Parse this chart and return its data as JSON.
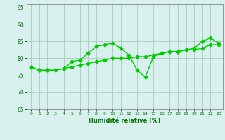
{
  "line1_x": [
    0,
    1,
    2,
    3,
    4,
    5,
    6,
    7,
    8,
    9,
    10,
    11,
    12,
    13,
    14,
    15,
    16,
    17,
    18,
    19,
    20,
    21,
    22,
    23
  ],
  "line1_y": [
    77.5,
    76.5,
    76.5,
    76.5,
    77,
    79,
    79.5,
    81.5,
    83.5,
    84,
    84.5,
    83,
    81,
    76.5,
    74.5,
    80.5,
    81.5,
    82,
    82,
    82.5,
    83,
    85,
    86,
    84.5
  ],
  "line2_x": [
    0,
    1,
    2,
    3,
    4,
    5,
    6,
    7,
    8,
    9,
    10,
    11,
    12,
    13,
    14,
    15,
    16,
    17,
    18,
    19,
    20,
    21,
    22,
    23
  ],
  "line2_y": [
    77.5,
    76.5,
    76.5,
    76.5,
    77,
    77.5,
    78,
    78.5,
    79,
    79.5,
    80,
    80,
    80,
    80.5,
    80.5,
    81,
    81.5,
    82,
    82,
    82.5,
    82.5,
    83,
    84,
    84
  ],
  "xlabel": "Humidité relative (%)",
  "ylim": [
    65,
    96
  ],
  "xlim": [
    -0.5,
    23.5
  ],
  "yticks": [
    65,
    70,
    75,
    80,
    85,
    90,
    95
  ],
  "xticks": [
    0,
    1,
    2,
    3,
    4,
    5,
    6,
    7,
    8,
    9,
    10,
    11,
    12,
    13,
    14,
    15,
    16,
    17,
    18,
    19,
    20,
    21,
    22,
    23
  ],
  "line_color": "#00cc00",
  "bg_color": "#d8f0ee",
  "grid_color": "#aaccbb",
  "marker": "D",
  "marker_size": 2.5,
  "line_width": 1.0
}
